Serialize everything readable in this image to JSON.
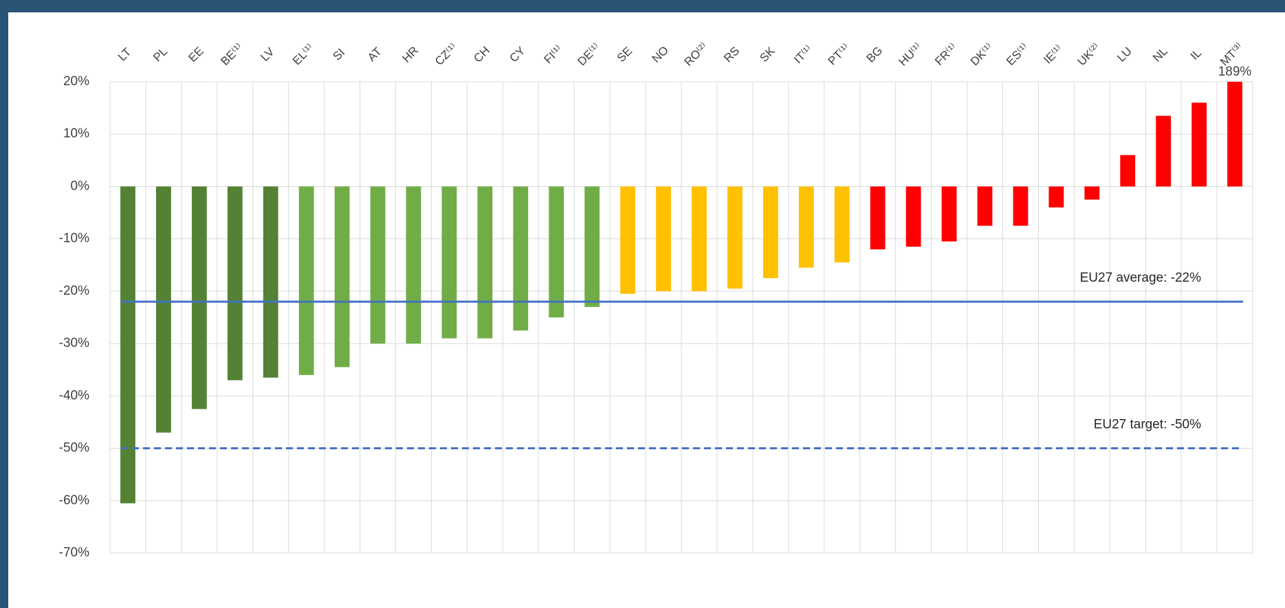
{
  "chart_data": {
    "type": "bar",
    "categories": [
      "LT",
      "PL",
      "EE",
      "BE⁽¹⁾",
      "LV",
      "EL⁽¹⁾",
      "SI",
      "AT",
      "HR",
      "CZ⁽¹⁾",
      "CH",
      "CY",
      "FI⁽¹⁾",
      "DE⁽¹⁾",
      "SE",
      "NO",
      "RO⁽²⁾",
      "RS",
      "SK",
      "IT⁽¹⁾",
      "PT⁽¹⁾",
      "BG",
      "HU⁽¹⁾",
      "FR⁽¹⁾",
      "DK⁽¹⁾",
      "ES⁽¹⁾",
      "IE⁽¹⁾",
      "UK⁽²⁾",
      "LU",
      "NL",
      "IL",
      "MT⁽³⁾"
    ],
    "values": [
      -60.5,
      -47,
      -42.5,
      -37,
      -36.5,
      -36,
      -34.5,
      -30,
      -30,
      -29,
      -29,
      -27.5,
      -25,
      -23,
      -20.5,
      -20,
      -20,
      -19.5,
      -17.5,
      -15.5,
      -14.5,
      -12,
      -11.5,
      -10.5,
      -7.5,
      -7.5,
      -4,
      -2.5,
      6,
      13.5,
      16,
      189
    ],
    "value_labels": [
      null,
      null,
      null,
      null,
      null,
      null,
      null,
      null,
      null,
      null,
      null,
      null,
      null,
      null,
      null,
      null,
      null,
      null,
      null,
      null,
      null,
      null,
      null,
      null,
      null,
      null,
      null,
      null,
      null,
      null,
      null,
      "189%"
    ],
    "colors": [
      "#548235",
      "#548235",
      "#548235",
      "#548235",
      "#548235",
      "#70ad47",
      "#70ad47",
      "#70ad47",
      "#70ad47",
      "#70ad47",
      "#70ad47",
      "#70ad47",
      "#70ad47",
      "#70ad47",
      "#ffc000",
      "#ffc000",
      "#ffc000",
      "#ffc000",
      "#ffc000",
      "#ffc000",
      "#ffc000",
      "#ff0000",
      "#ff0000",
      "#ff0000",
      "#ff0000",
      "#ff0000",
      "#ff0000",
      "#ff0000",
      "#ff0000",
      "#ff0000",
      "#ff0000",
      "#ff0000"
    ],
    "ylim": [
      -70,
      20
    ],
    "yticks": [
      {
        "value": 20,
        "label": "20%"
      },
      {
        "value": 10,
        "label": "10%"
      },
      {
        "value": 0,
        "label": "0%"
      },
      {
        "value": -10,
        "label": "-10%"
      },
      {
        "value": -20,
        "label": "-20%"
      },
      {
        "value": -30,
        "label": "-30%"
      },
      {
        "value": -40,
        "label": "-40%"
      },
      {
        "value": -50,
        "label": "-50%"
      },
      {
        "value": -60,
        "label": "-60%"
      },
      {
        "value": -70,
        "label": "-70%"
      }
    ],
    "grid": true,
    "reference_lines": [
      {
        "value": -22,
        "label": "EU27 average: -22%",
        "color": "#4472c4",
        "style": "solid"
      },
      {
        "value": -50,
        "label": "EU27 target: -50%",
        "color": "#4472c4",
        "style": "dashed"
      }
    ]
  }
}
